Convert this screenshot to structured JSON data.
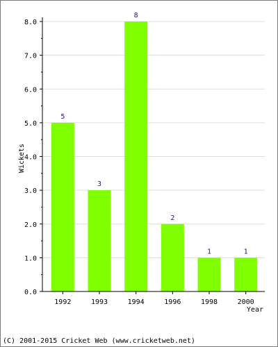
{
  "chart_data": {
    "type": "bar",
    "categories": [
      "1992",
      "1993",
      "1994",
      "1996",
      "1998",
      "2000"
    ],
    "values": [
      5,
      3,
      8,
      2,
      1,
      1
    ],
    "data_labels": [
      "5",
      "3",
      "8",
      "2",
      "1",
      "1"
    ],
    "y_tick_labels": [
      "0.0",
      "1.0",
      "2.0",
      "3.0",
      "4.0",
      "5.0",
      "6.0",
      "7.0",
      "8.0"
    ],
    "ylim": [
      0,
      8
    ],
    "xlabel": "Year",
    "ylabel": "Wickets",
    "grid": true,
    "bar_color": "#80ff00"
  },
  "footer": {
    "text": "(C) 2001-2015 Cricket Web (www.cricketweb.net)"
  }
}
